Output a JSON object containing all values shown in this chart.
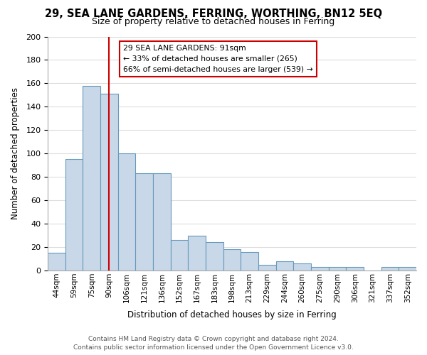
{
  "title": "29, SEA LANE GARDENS, FERRING, WORTHING, BN12 5EQ",
  "subtitle": "Size of property relative to detached houses in Ferring",
  "xlabel": "Distribution of detached houses by size in Ferring",
  "ylabel": "Number of detached properties",
  "bar_labels": [
    "44sqm",
    "59sqm",
    "75sqm",
    "90sqm",
    "106sqm",
    "121sqm",
    "136sqm",
    "152sqm",
    "167sqm",
    "183sqm",
    "198sqm",
    "213sqm",
    "229sqm",
    "244sqm",
    "260sqm",
    "275sqm",
    "290sqm",
    "306sqm",
    "321sqm",
    "337sqm",
    "352sqm"
  ],
  "bar_values": [
    15,
    95,
    158,
    151,
    100,
    83,
    83,
    26,
    30,
    24,
    18,
    16,
    5,
    8,
    6,
    3,
    3,
    3,
    0,
    3,
    3
  ],
  "bar_color": "#c8d8e8",
  "bar_edge_color": "#6699bb",
  "highlight_bar_index": 3,
  "highlight_line_color": "#cc0000",
  "ylim": [
    0,
    200
  ],
  "yticks": [
    0,
    20,
    40,
    60,
    80,
    100,
    120,
    140,
    160,
    180,
    200
  ],
  "annotation_title": "29 SEA LANE GARDENS: 91sqm",
  "annotation_line1": "← 33% of detached houses are smaller (265)",
  "annotation_line2": "66% of semi-detached houses are larger (539) →",
  "annotation_box_color": "#ffffff",
  "annotation_box_edge": "#cc0000",
  "footer_line1": "Contains HM Land Registry data © Crown copyright and database right 2024.",
  "footer_line2": "Contains public sector information licensed under the Open Government Licence v3.0.",
  "background_color": "#ffffff",
  "grid_color": "#dddddd"
}
